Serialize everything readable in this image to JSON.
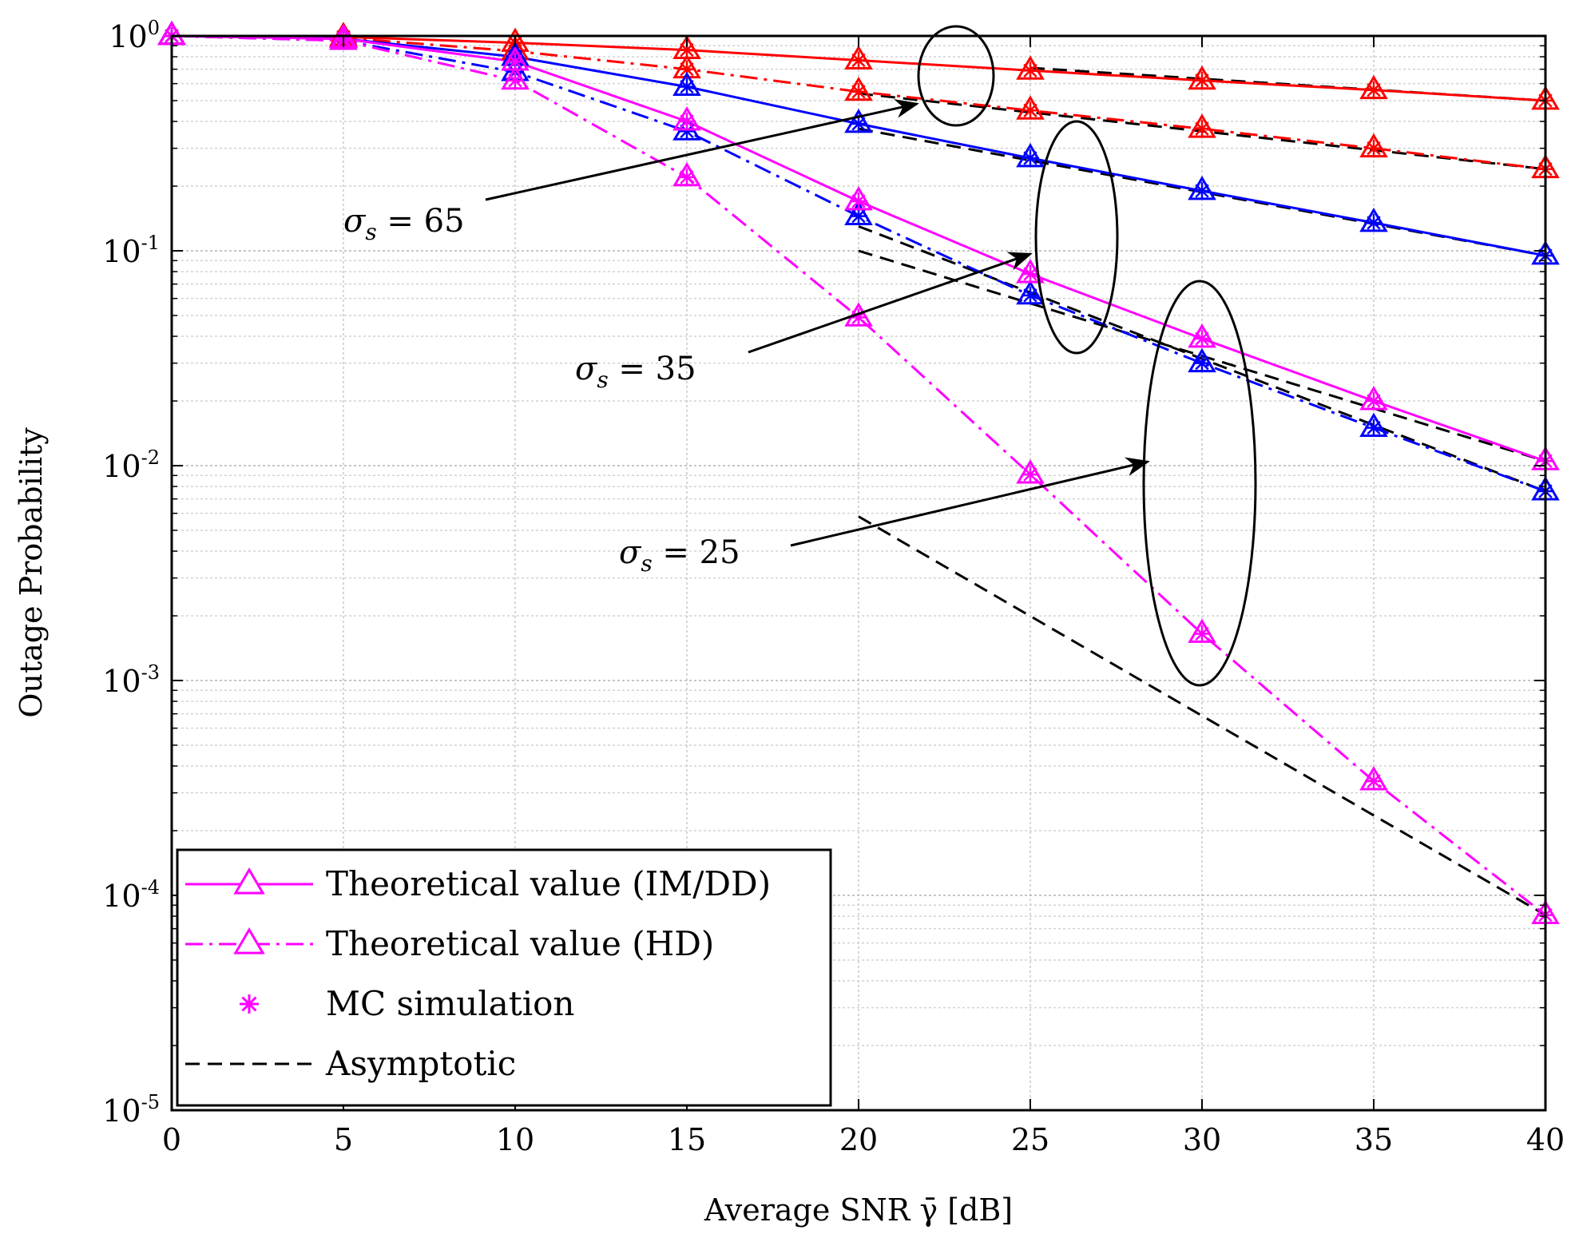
{
  "chart_data": {
    "type": "line",
    "xlabel": "Average SNR γ̄ [dB]",
    "ylabel": "Outage Probability",
    "xlim": [
      0,
      40
    ],
    "ylim": [
      1e-05,
      1
    ],
    "yscale": "log",
    "grid": true,
    "x_ticks": [
      "0",
      "5",
      "10",
      "15",
      "20",
      "25",
      "30",
      "35",
      "40"
    ],
    "y_ticks": [
      {
        "base": "10",
        "exp": "0"
      },
      {
        "base": "10",
        "exp": "-1"
      },
      {
        "base": "10",
        "exp": "-2"
      },
      {
        "base": "10",
        "exp": "-3"
      },
      {
        "base": "10",
        "exp": "-4"
      },
      {
        "base": "10",
        "exp": "-5"
      }
    ],
    "x": [
      0,
      5,
      10,
      15,
      20,
      25,
      30,
      35,
      40
    ],
    "series": [
      {
        "name": "IM/DD σs=65",
        "style": "solid",
        "color": "#ff0000",
        "values": [
          1.0,
          0.99,
          0.93,
          0.86,
          0.77,
          0.69,
          0.62,
          0.56,
          0.5
        ]
      },
      {
        "name": "HD σs=65",
        "style": "dashdot",
        "color": "#ff0000",
        "values": [
          1.0,
          0.98,
          0.85,
          0.7,
          0.55,
          0.45,
          0.37,
          0.3,
          0.24
        ]
      },
      {
        "name": "IM/DD σs=35",
        "style": "solid",
        "color": "#0000ff",
        "values": [
          1.0,
          0.97,
          0.8,
          0.58,
          0.39,
          0.27,
          0.19,
          0.135,
          0.095
        ]
      },
      {
        "name": "HD σs=35",
        "style": "dashdot",
        "color": "#0000ff",
        "values": [
          1.0,
          0.95,
          0.68,
          0.36,
          0.145,
          0.062,
          0.03,
          0.015,
          0.0076
        ]
      },
      {
        "name": "IM/DD σs=25",
        "style": "solid",
        "color": "#ff00ff",
        "values": [
          1.0,
          0.97,
          0.76,
          0.4,
          0.17,
          0.078,
          0.039,
          0.02,
          0.0105
        ]
      },
      {
        "name": "HD σs=25",
        "style": "dashdot",
        "color": "#ff00ff",
        "values": [
          1.0,
          0.95,
          0.62,
          0.22,
          0.049,
          0.0091,
          0.00165,
          0.00034,
          8.1e-05
        ]
      }
    ],
    "asymptotic": [
      {
        "x": [
          20,
          40
        ],
        "values": [
          0.54,
          0.24
        ]
      },
      {
        "x": [
          25,
          40
        ],
        "values": [
          0.71,
          0.5
        ]
      },
      {
        "x": [
          20,
          40
        ],
        "values": [
          0.37,
          0.095
        ]
      },
      {
        "x": [
          20,
          40
        ],
        "values": [
          0.1,
          0.0105
        ]
      },
      {
        "x": [
          20,
          40
        ],
        "values": [
          0.13,
          0.0076
        ]
      },
      {
        "x": [
          20,
          40
        ],
        "values": [
          0.0058,
          8.1e-05
        ]
      }
    ],
    "legend": [
      {
        "label": "Theoretical value (IM/DD)",
        "kind": "solid-triangle"
      },
      {
        "label": "Theoretical value (HD)",
        "kind": "dashdot-triangle"
      },
      {
        "label": "MC simulation",
        "kind": "star"
      },
      {
        "label": "Asymptotic",
        "kind": "dashed"
      }
    ],
    "legend_location": "bottom-left",
    "annotations": [
      {
        "symbol": "σ",
        "sub": "s",
        "value": " = 65"
      },
      {
        "symbol": "σ",
        "sub": "s",
        "value": " = 35"
      },
      {
        "symbol": "σ",
        "sub": "s",
        "value": " = 25"
      }
    ]
  }
}
